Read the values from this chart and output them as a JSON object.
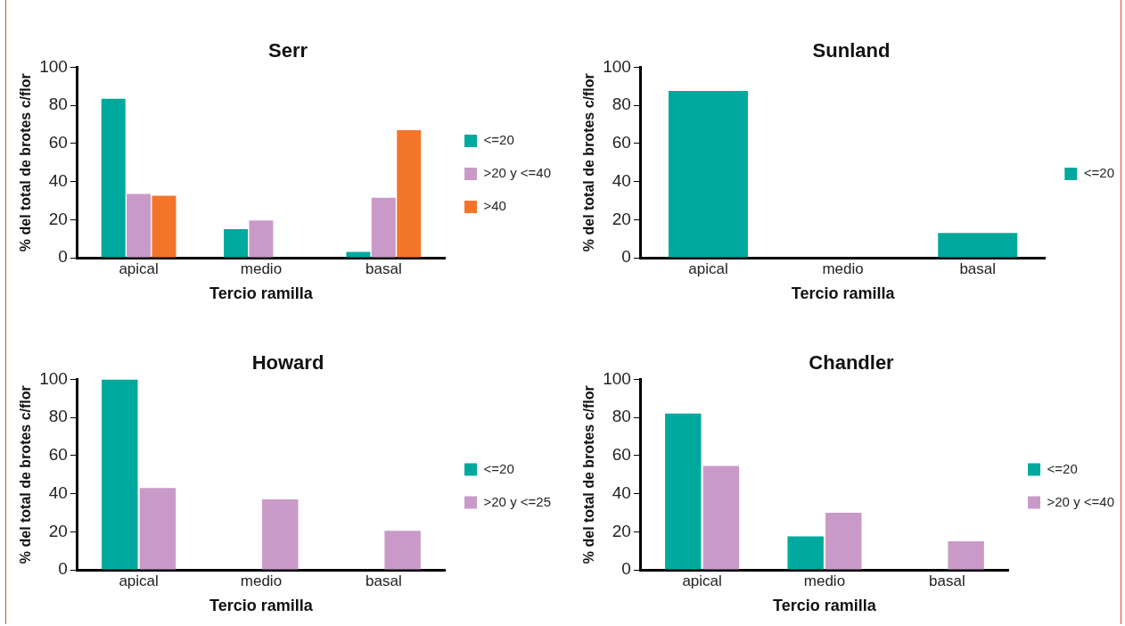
{
  "chart_data": [
    {
      "type": "bar",
      "title": "Serr",
      "xlabel": "Tercio ramilla",
      "ylabel": "% del total de brotes c/flor",
      "categories": [
        "apical",
        "medio",
        "basal"
      ],
      "series": [
        {
          "name": "<=20",
          "color": "#00a99d",
          "values": [
            83.5,
            15,
            3
          ]
        },
        {
          "name": ">20 y <=40",
          "color": "#c99ac8",
          "values": [
            33.5,
            19.5,
            31.5
          ]
        },
        {
          "name": ">40",
          "color": "#f3752a",
          "values": [
            32.5,
            0,
            67
          ]
        }
      ],
      "ylim": [
        0,
        100
      ],
      "yticks": [
        0,
        20,
        40,
        60,
        80,
        100
      ],
      "grid": false,
      "legend": "right"
    },
    {
      "type": "bar",
      "title": "Sunland",
      "xlabel": "Tercio ramilla",
      "ylabel": "% del total de brotes c/flor",
      "categories": [
        "apical",
        "medio",
        "basal"
      ],
      "series": [
        {
          "name": "<=20",
          "color": "#00a99d",
          "values": [
            87.5,
            0,
            13
          ]
        }
      ],
      "ylim": [
        0,
        100
      ],
      "yticks": [
        0,
        20,
        40,
        60,
        80,
        100
      ],
      "grid": false,
      "legend": "right"
    },
    {
      "type": "bar",
      "title": "Howard",
      "xlabel": "Tercio ramilla",
      "ylabel": "% del total de brotes c/flor",
      "categories": [
        "apical",
        "medio",
        "basal"
      ],
      "series": [
        {
          "name": "<=20",
          "color": "#00a99d",
          "values": [
            100,
            0,
            0
          ]
        },
        {
          "name": ">20 y <=25",
          "color": "#c99ac8",
          "values": [
            43,
            37,
            20.5
          ]
        }
      ],
      "ylim": [
        0,
        100
      ],
      "yticks": [
        0,
        20,
        40,
        60,
        80,
        100
      ],
      "grid": false,
      "legend": "right"
    },
    {
      "type": "bar",
      "title": "Chandler",
      "xlabel": "Tercio ramilla",
      "ylabel": "% del total de brotes c/flor",
      "categories": [
        "apical",
        "medio",
        "basal"
      ],
      "series": [
        {
          "name": "<=20",
          "color": "#00a99d",
          "values": [
            82,
            17.5,
            0
          ]
        },
        {
          "name": ">20 y <=40",
          "color": "#c99ac8",
          "values": [
            54.5,
            30,
            15
          ]
        }
      ],
      "ylim": [
        0,
        100
      ],
      "yticks": [
        0,
        20,
        40,
        60,
        80,
        100
      ],
      "grid": false,
      "legend": "right"
    }
  ]
}
